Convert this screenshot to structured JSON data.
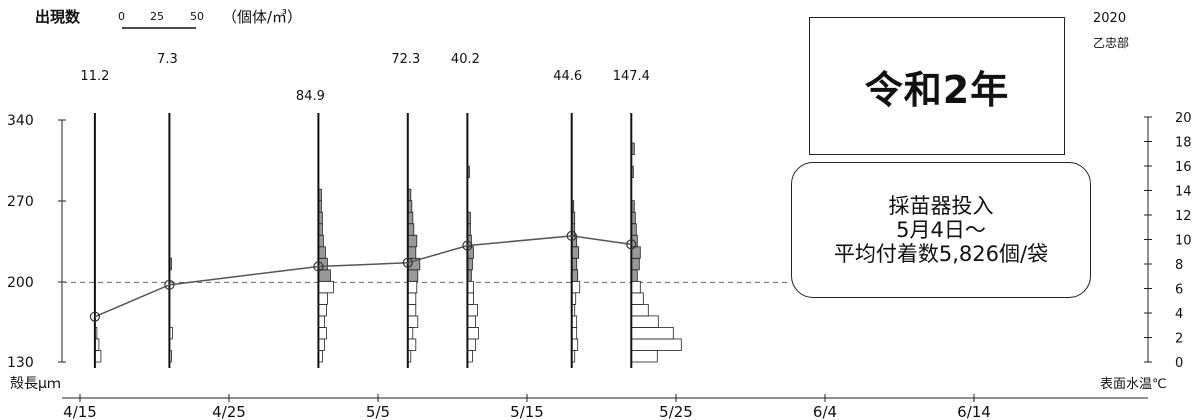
{
  "chart_data": {
    "type": "line",
    "header": {
      "label": "出現数",
      "scale_ticks": [
        "0",
        "25",
        "50"
      ],
      "scale_unit": "（個体/㎥）",
      "year": "2020",
      "station": "乙忠部"
    },
    "title": "令和2年",
    "note": [
      "採苗器投入",
      "5月4日～",
      "平均付着数5,826個/袋"
    ],
    "xlabel": "",
    "x_ticks": [
      "4/15",
      "4/25",
      "5/5",
      "5/15",
      "5/25",
      "6/4",
      "6/14"
    ],
    "xlim": [
      "4/15",
      "6/19"
    ],
    "left_axis": {
      "label": "殻長μｍ",
      "ticks": [
        "340",
        "270",
        "200",
        "130"
      ],
      "ylim": [
        130,
        340
      ]
    },
    "right_axis": {
      "label": "表面水温℃",
      "ticks": [
        "20",
        "18",
        "16",
        "14",
        "12",
        "10",
        "8",
        "6",
        "4",
        "2",
        "0"
      ],
      "ylim": [
        0,
        20
      ]
    },
    "reference_line_temp": 6.5,
    "samples": [
      {
        "date": "4/16",
        "total": "11.2",
        "temp": 3.7
      },
      {
        "date": "4/21",
        "total": "7.3",
        "temp": 6.3
      },
      {
        "date": "5/1",
        "total": "84.9",
        "temp": 7.8
      },
      {
        "date": "5/7",
        "total": "72.3",
        "temp": 8.1
      },
      {
        "date": "5/11",
        "total": "40.2",
        "temp": 9.5
      },
      {
        "date": "5/18",
        "total": "44.6",
        "temp": 10.3
      },
      {
        "date": "5/22",
        "total": "147.4",
        "temp": 9.6
      }
    ],
    "colors": {
      "line": "#555555",
      "dashed": "#666666",
      "bar_fill_above": "#999999",
      "bar_fill_below": "#ffffff"
    }
  }
}
